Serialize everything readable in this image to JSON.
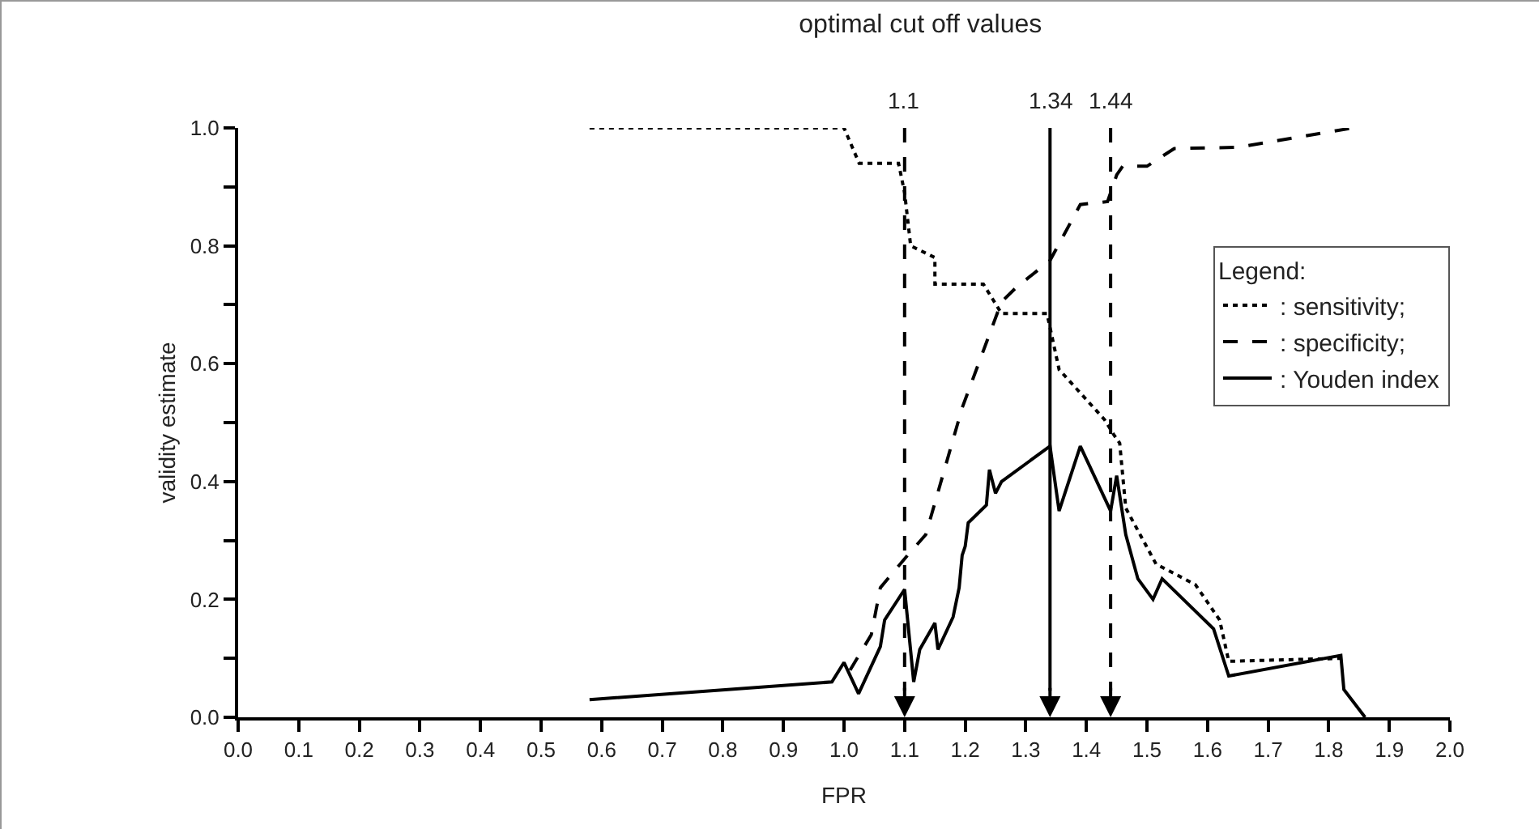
{
  "chart_data": {
    "type": "line",
    "title": "optimal cut off values",
    "xlabel": "FPR",
    "ylabel": "validity estimate",
    "legend_title": "Legend:",
    "legend": "right",
    "grid": false,
    "marker": "none",
    "xlim": [
      0,
      2.0
    ],
    "ylim": [
      0,
      1.0
    ],
    "xticks": [
      {
        "value": 0,
        "label": "0.0"
      },
      0.1,
      0.2,
      0.3,
      0.4,
      0.5,
      0.6,
      0.7,
      0.8,
      0.9,
      {
        "value": 1,
        "label": "1.0"
      },
      1.1,
      1.2,
      1.3,
      1.4,
      1.5,
      1.6,
      1.7,
      1.8,
      1.9,
      {
        "value": 2,
        "label": "2.0"
      }
    ],
    "yticks": [
      {
        "value": 0,
        "label": "0.0"
      },
      {
        "value": 0.1,
        "label": null
      },
      0.2,
      {
        "value": 0.3,
        "label": null
      },
      0.4,
      {
        "value": 0.5,
        "label": null
      },
      0.6,
      {
        "value": 0.7,
        "label": null
      },
      0.8,
      {
        "value": 0.9,
        "label": null
      },
      {
        "value": 1,
        "label": "1.0"
      }
    ],
    "series": [
      {
        "name": ": sensitivity;",
        "color": "#000000",
        "line_style": "dotted",
        "x": [
          0.58,
          1.0,
          1.025,
          1.09,
          1.1,
          1.11,
          1.15,
          1.15,
          1.23,
          1.26,
          1.335,
          1.355,
          1.43,
          1.445,
          1.455,
          1.465,
          1.515,
          1.58,
          1.62,
          1.635,
          1.82
        ],
        "values": [
          1.0,
          1.0,
          0.94,
          0.94,
          0.89,
          0.8,
          0.78,
          0.735,
          0.735,
          0.685,
          0.685,
          0.59,
          0.505,
          0.48,
          0.465,
          0.355,
          0.26,
          0.225,
          0.165,
          0.095,
          0.1
        ]
      },
      {
        "name": ": specificity;",
        "color": "#000000",
        "line_style": "dashed",
        "x": [
          1.01,
          1.045,
          1.06,
          1.105,
          1.135,
          1.195,
          1.26,
          1.285,
          1.34,
          1.39,
          1.435,
          1.45,
          1.46,
          1.5,
          1.545,
          1.65,
          1.84
        ],
        "values": [
          0.08,
          0.14,
          0.22,
          0.275,
          0.31,
          0.525,
          0.705,
          0.73,
          0.775,
          0.87,
          0.875,
          0.92,
          0.935,
          0.935,
          0.965,
          0.967,
          1.0
        ]
      },
      {
        "name": ": Youden index",
        "color": "#000000",
        "line_style": "solid",
        "x": [
          0.58,
          0.98,
          1.0,
          1.024,
          1.06,
          1.067,
          1.1,
          1.115,
          1.125,
          1.15,
          1.155,
          1.18,
          1.19,
          1.195,
          1.2,
          1.205,
          1.235,
          1.24,
          1.25,
          1.26,
          1.34,
          1.355,
          1.39,
          1.44,
          1.45,
          1.465,
          1.485,
          1.51,
          1.525,
          1.61,
          1.635,
          1.82,
          1.825,
          1.86
        ],
        "values": [
          0.03,
          0.06,
          0.093,
          0.04,
          0.12,
          0.165,
          0.217,
          0.06,
          0.115,
          0.16,
          0.115,
          0.17,
          0.22,
          0.275,
          0.29,
          0.33,
          0.36,
          0.42,
          0.38,
          0.4,
          0.46,
          0.35,
          0.46,
          0.35,
          0.41,
          0.31,
          0.235,
          0.2,
          0.235,
          0.15,
          0.07,
          0.105,
          0.047,
          0
        ]
      }
    ],
    "ref_lines": [
      {
        "axis": "x",
        "value": 1.1,
        "label": "1.1",
        "line_style": "dashed"
      },
      {
        "axis": "x",
        "value": 1.34,
        "label": "1.34",
        "line_style": "solid"
      },
      {
        "axis": "x",
        "value": 1.44,
        "label": "1.44",
        "line_style": "dashed"
      }
    ]
  }
}
